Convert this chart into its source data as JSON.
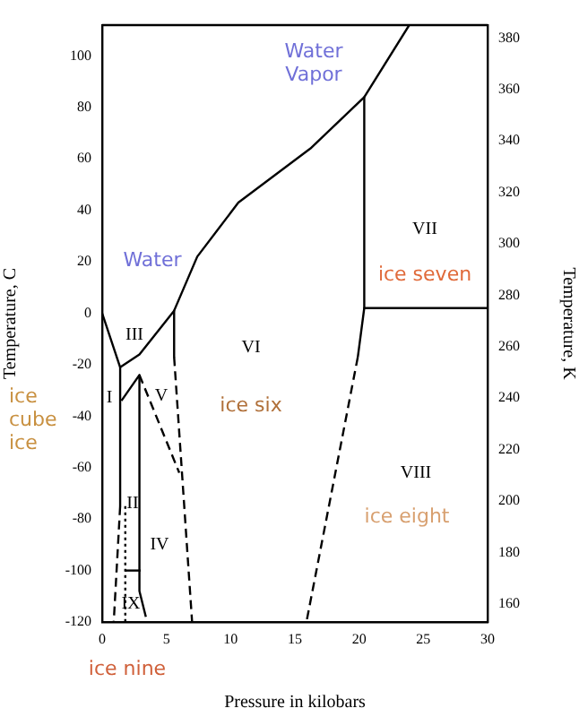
{
  "chart_data": {
    "type": "line",
    "xlabel": "Pressure in kilobars",
    "ylabel": "Temperature, C",
    "y2label": "Temperature, K",
    "xlim": [
      0,
      30
    ],
    "xticks": [
      0,
      5,
      10,
      15,
      20,
      25,
      30
    ],
    "ylim": [
      -120,
      112
    ],
    "yticks": [
      -120,
      -100,
      -80,
      -60,
      -40,
      -20,
      0,
      20,
      40,
      60,
      80,
      100
    ],
    "y2lim": [
      153,
      385
    ],
    "y2ticks": [
      160,
      180,
      200,
      220,
      240,
      260,
      280,
      300,
      320,
      340,
      360,
      380
    ],
    "grid": false,
    "legend": false,
    "marker": "none",
    "series": [
      {
        "color": "#000000",
        "x": [
          0,
          1.4,
          2.9,
          5.6,
          7.4,
          10.6,
          16.2,
          20.4,
          23.9
        ],
        "values": [
          0,
          -21,
          -16,
          1,
          22,
          43,
          64,
          84,
          112
        ]
      },
      {
        "color": "#000000",
        "x": [
          20.4,
          20.4
        ],
        "values": [
          84,
          2
        ]
      },
      {
        "color": "#000000",
        "x": [
          30,
          20.4,
          19.9
        ],
        "values": [
          2,
          2,
          -17
        ]
      },
      {
        "color": "#000000",
        "line_style": "dashed",
        "x": [
          19.9,
          15.9
        ],
        "values": [
          -17,
          -120
        ]
      },
      {
        "color": "#000000",
        "x": [
          5.6,
          5.6
        ],
        "values": [
          1,
          -17
        ]
      },
      {
        "color": "#000000",
        "line_style": "dashed",
        "x": [
          5.6,
          7.0
        ],
        "values": [
          -17,
          -120
        ]
      },
      {
        "color": "#000000",
        "x": [
          1.4,
          1.4
        ],
        "values": [
          -21,
          -75
        ]
      },
      {
        "color": "#000000",
        "line_style": "dashed",
        "x": [
          1.4,
          0.9
        ],
        "values": [
          -75,
          -120
        ]
      },
      {
        "color": "#000000",
        "x": [
          1.5,
          2.9,
          2.9,
          3.4
        ],
        "values": [
          -34,
          -24,
          -108,
          -118
        ]
      },
      {
        "color": "#000000",
        "line_style": "dashed",
        "x": [
          2.9,
          6.0
        ],
        "values": [
          -24,
          -62
        ]
      },
      {
        "color": "#000000",
        "x": [
          1.8,
          3.0
        ],
        "values": [
          -100,
          -100
        ]
      },
      {
        "color": "#000000",
        "line_style": "dotted",
        "x": [
          1.8,
          1.8
        ],
        "values": [
          -75,
          -120
        ]
      }
    ],
    "annotations": [
      "Water Vapor",
      "Water",
      "III",
      "I",
      "V",
      "VI",
      "ice six",
      "VII",
      "ice seven",
      "VIII",
      "ice eight",
      "II",
      "IV",
      "IX",
      "ice cube ice",
      "ice nine"
    ]
  }
}
